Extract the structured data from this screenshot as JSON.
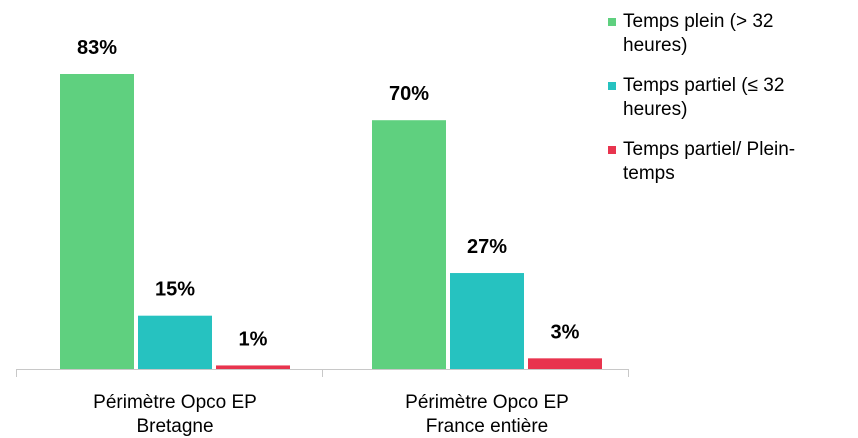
{
  "chart_data": {
    "type": "bar",
    "categories": [
      [
        "Périmètre Opco EP",
        "Bretagne"
      ],
      [
        "Périmètre Opco EP",
        "France entière"
      ]
    ],
    "series": [
      {
        "name": "Temps plein (> 32 heures)",
        "color": "#5fd07f",
        "values": [
          83,
          70
        ],
        "labels": [
          "83%",
          "70%"
        ]
      },
      {
        "name": "Temps partiel (≤ 32 heures)",
        "color": "#26c2c0",
        "values": [
          15,
          27
        ],
        "labels": [
          "15%",
          "27%"
        ]
      },
      {
        "name": "Temps partiel/ Plein-temps",
        "color": "#e8344e",
        "values": [
          1,
          3
        ],
        "labels": [
          "1%",
          "3%"
        ]
      }
    ],
    "legend_lines": [
      [
        "Temps plein (> 32",
        "heures)"
      ],
      [
        "Temps partiel (≤ 32",
        "heures)"
      ],
      [
        "Temps partiel/ Plein-",
        "temps"
      ]
    ],
    "ylim": [
      0,
      83
    ],
    "grid": false,
    "legend_position": "top-right"
  }
}
